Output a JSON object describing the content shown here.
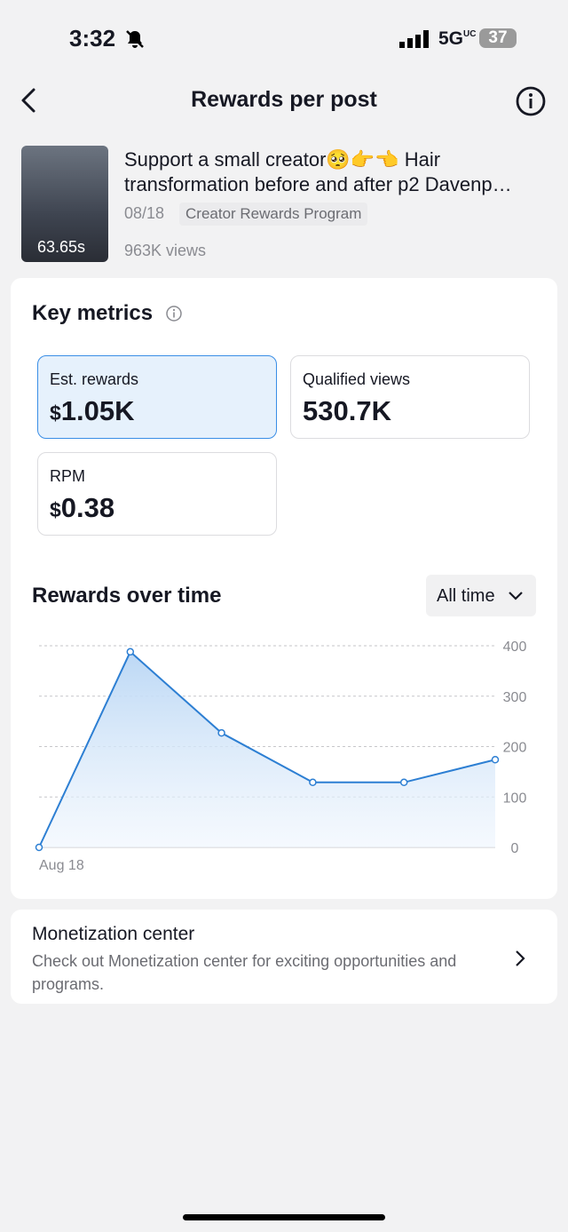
{
  "status_bar": {
    "time": "3:32",
    "network": "5G",
    "network_sub": "UC",
    "battery": "37"
  },
  "header": {
    "title": "Rewards per post"
  },
  "post": {
    "caption": "Support a small creator🥺👉👈 Hair transformation before and after p2 Davenp…",
    "date": "08/18",
    "program": "Creator Rewards Program",
    "views": "963K views",
    "thumbnail_duration": "63.65s"
  },
  "key_metrics": {
    "title": "Key metrics",
    "cards": [
      {
        "label": "Est. rewards",
        "currency": "$",
        "value": "1.05K"
      },
      {
        "label": "Qualified views",
        "value": "530.7K"
      },
      {
        "label": "RPM",
        "currency": "$",
        "value": "0.38"
      }
    ]
  },
  "rewards_over_time": {
    "title": "Rewards over time",
    "range": "All time",
    "chart": {
      "type": "line",
      "categories": [
        "Aug 18",
        null,
        null,
        null,
        null,
        null
      ],
      "values": [
        0,
        388,
        227,
        129,
        129,
        174
      ],
      "ylim": [
        0,
        400
      ],
      "yticks": [
        0,
        100,
        200,
        300,
        400
      ],
      "color": "#2d7fd3",
      "grid": true
    }
  },
  "monetization": {
    "title": "Monetization center",
    "description": "Check out Monetization center for exciting opportunities and programs."
  }
}
